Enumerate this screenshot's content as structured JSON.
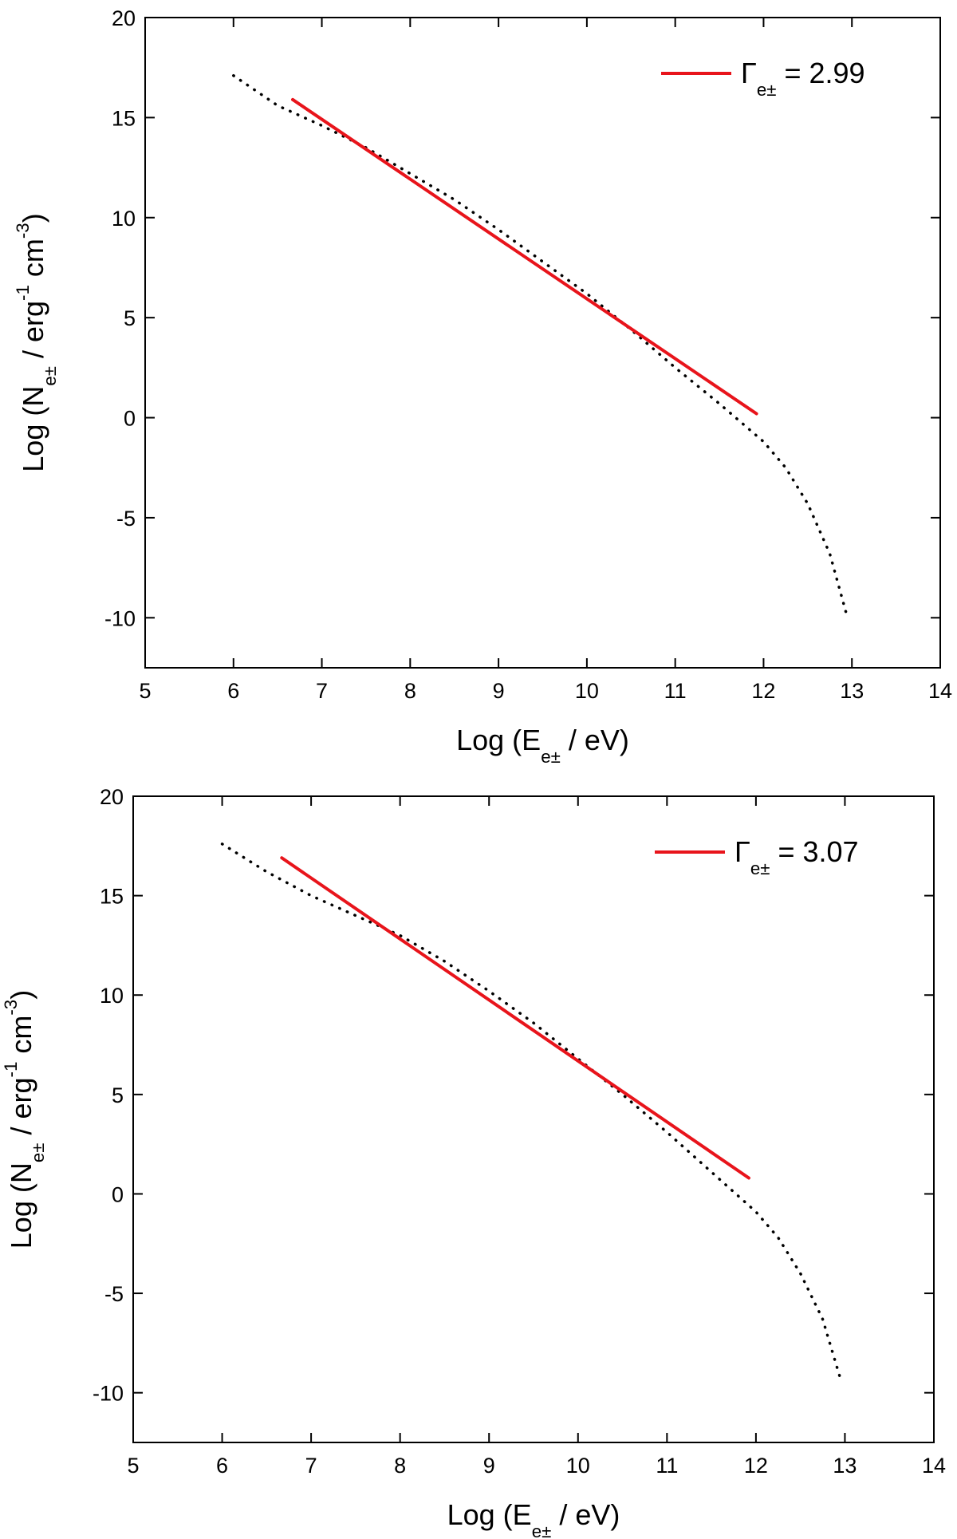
{
  "chart_data": [
    {
      "type": "line",
      "x_label": [
        {
          "text": "Log (E"
        },
        {
          "text": "e±",
          "baseline": "sub"
        },
        {
          "text": " / eV)"
        }
      ],
      "y_label": [
        {
          "text": "Log (N"
        },
        {
          "text": "e±",
          "baseline": "sub"
        },
        {
          "text": " / erg"
        },
        {
          "text": "-1",
          "baseline": "super"
        },
        {
          "text": " cm"
        },
        {
          "text": "-3",
          "baseline": "super"
        },
        {
          "text": ")"
        }
      ],
      "xlim": [
        5,
        14
      ],
      "xticks": [
        5,
        6,
        7,
        8,
        9,
        10,
        11,
        12,
        13,
        14
      ],
      "ylim": [
        -12.5,
        20
      ],
      "yticks": [
        -10,
        -5,
        0,
        5,
        10,
        15,
        20
      ],
      "legend": "upper right",
      "series": [
        {
          "color": "#000000",
          "style": "dotted",
          "x": [
            6,
            6.5,
            7,
            7.5,
            8,
            8.5,
            9,
            9.5,
            10,
            10.5,
            11,
            11.5,
            12,
            12.25,
            12.5,
            12.75,
            12.95
          ],
          "values": [
            17.1,
            15.6,
            14.6,
            13.5,
            12.2,
            10.9,
            9.4,
            7.8,
            6.2,
            4.4,
            2.5,
            0.7,
            -1.2,
            -2.5,
            -4.3,
            -6.8,
            -10
          ]
        },
        {
          "name": [
            {
              "text": "Γ"
            },
            {
              "text": "e±",
              "baseline": "sub"
            },
            {
              "text": " = 2.99"
            }
          ],
          "color": "#e8141b",
          "style": "solid",
          "x": [
            6.67,
            11.92
          ],
          "values": [
            15.9,
            0.2
          ]
        }
      ]
    },
    {
      "type": "line",
      "x_label": [
        {
          "text": "Log (E"
        },
        {
          "text": "e±",
          "baseline": "sub"
        },
        {
          "text": " / eV)"
        }
      ],
      "y_label": [
        {
          "text": "Log (N"
        },
        {
          "text": "e±",
          "baseline": "sub"
        },
        {
          "text": " / erg"
        },
        {
          "text": "-1",
          "baseline": "super"
        },
        {
          "text": " cm"
        },
        {
          "text": "-3",
          "baseline": "super"
        },
        {
          "text": ")"
        }
      ],
      "xlim": [
        5,
        14
      ],
      "xticks": [
        5,
        6,
        7,
        8,
        9,
        10,
        11,
        12,
        13,
        14
      ],
      "ylim": [
        -12.5,
        20
      ],
      "yticks": [
        -10,
        -5,
        0,
        5,
        10,
        15,
        20
      ],
      "legend": "upper right",
      "series": [
        {
          "color": "#000000",
          "style": "dotted",
          "x": [
            6,
            6.5,
            7,
            7.5,
            8,
            8.5,
            9,
            9.5,
            10,
            10.5,
            11,
            11.5,
            12,
            12.25,
            12.5,
            12.75,
            12.95
          ],
          "values": [
            17.6,
            16.2,
            15.0,
            14.0,
            13.0,
            11.7,
            10.2,
            8.6,
            6.8,
            5.0,
            3.1,
            1.1,
            -0.9,
            -2.2,
            -4.0,
            -6.3,
            -9.3
          ]
        },
        {
          "name": [
            {
              "text": "Γ"
            },
            {
              "text": "e±",
              "baseline": "sub"
            },
            {
              "text": " = 3.07"
            }
          ],
          "color": "#e8141b",
          "style": "solid",
          "x": [
            6.67,
            11.92
          ],
          "values": [
            16.9,
            0.8
          ]
        }
      ]
    }
  ]
}
